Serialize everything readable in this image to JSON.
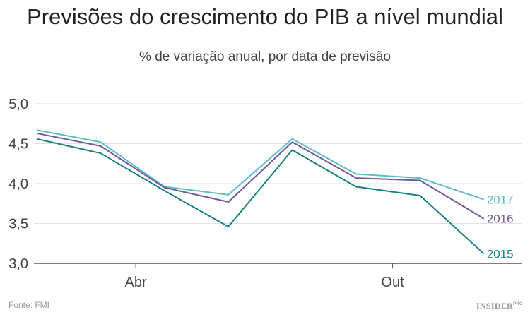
{
  "title": "Previsões do crescimento do PIB a nível mundial",
  "subtitle": "% de variação anual, por data de previsão",
  "source": "Fonte: FMI",
  "logo": "INSIDER PRO",
  "chart_data": {
    "type": "line",
    "title": "Previsões do crescimento do PIB a nível mundial",
    "subtitle": "% de variação anual, por data de previsão",
    "x": [
      0,
      1,
      2,
      3,
      4,
      5,
      6,
      7
    ],
    "x_ticks": [
      {
        "label": "Abr",
        "x": 1.55
      },
      {
        "label": "Out",
        "x": 5.57
      }
    ],
    "ylim": [
      3.0,
      5.0
    ],
    "y_ticks": [
      {
        "value": 3.0,
        "label": "3,0"
      },
      {
        "value": 3.5,
        "label": "3,5"
      },
      {
        "value": 4.0,
        "label": "4,0"
      },
      {
        "value": 4.5,
        "label": "4,5"
      },
      {
        "value": 5.0,
        "label": "5,0"
      }
    ],
    "grid": true,
    "legend": "inline-right",
    "series": [
      {
        "name": "2017",
        "color": "#5bbfc6",
        "values": [
          4.67,
          4.52,
          3.96,
          3.86,
          4.56,
          4.12,
          4.07,
          3.8
        ]
      },
      {
        "name": "2016",
        "color": "#6e5a9c",
        "values": [
          4.63,
          4.47,
          3.95,
          3.77,
          4.52,
          4.07,
          4.04,
          3.56
        ]
      },
      {
        "name": "2015",
        "color": "#1a8080",
        "values": [
          4.56,
          4.38,
          3.91,
          3.46,
          4.42,
          3.96,
          3.85,
          3.12
        ]
      }
    ]
  }
}
